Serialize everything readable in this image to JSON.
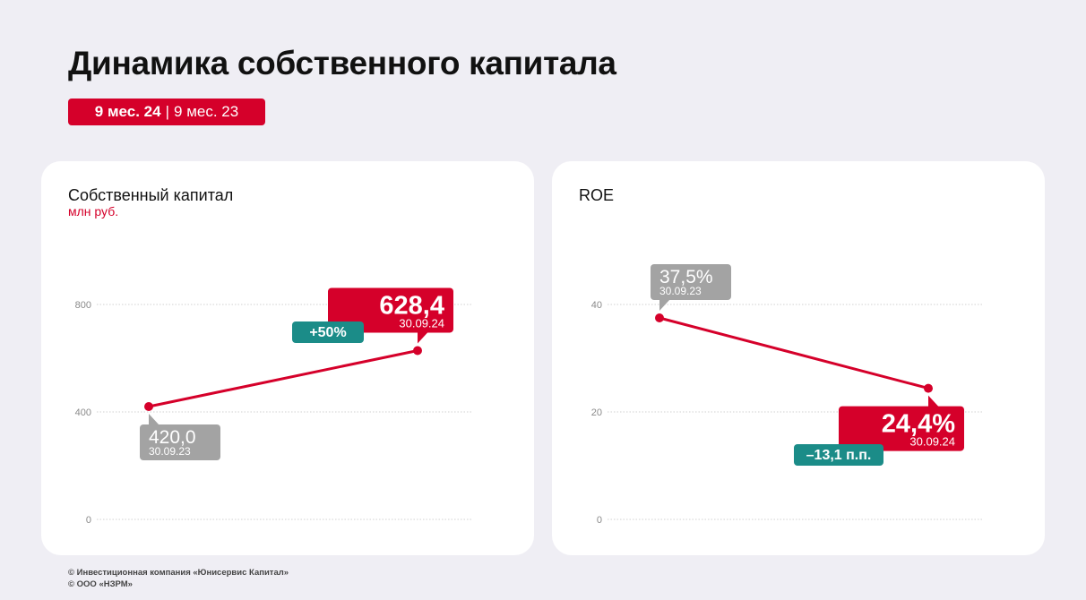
{
  "header": {
    "title": "Динамика собственного капитала",
    "period_active": "9 мес. 24",
    "period_separator": "|",
    "period_other": "9 мес. 23"
  },
  "colors": {
    "accent": "#d5002a",
    "gray_label": "#a3a3a3",
    "teal_badge": "#1b8c88",
    "grid": "#d0d0d0",
    "background": "#efeef4",
    "card": "#ffffff"
  },
  "chart_data": [
    {
      "type": "line",
      "title": "Собственный капитал",
      "subtitle": "млн руб.",
      "ylim": [
        0,
        800
      ],
      "yticks": [
        0,
        400,
        800
      ],
      "ytick_labels": [
        "0",
        "400",
        "800"
      ],
      "grid": true,
      "points": [
        {
          "value": 420.0,
          "value_label": "420,0",
          "date": "30.09.23"
        },
        {
          "value": 628.4,
          "value_label": "628,4",
          "date": "30.09.24"
        }
      ],
      "change_badge": "+50%"
    },
    {
      "type": "line",
      "title": "ROE",
      "subtitle": "",
      "ylim": [
        0,
        40
      ],
      "yticks": [
        0,
        20,
        40
      ],
      "ytick_labels": [
        "0",
        "20",
        "40"
      ],
      "grid": true,
      "points": [
        {
          "value": 37.5,
          "value_label": "37,5%",
          "date": "30.09.23"
        },
        {
          "value": 24.4,
          "value_label": "24,4%",
          "date": "30.09.24"
        }
      ],
      "change_badge": "–13,1 п.п."
    }
  ],
  "footer": {
    "line1": "© Инвестиционная компания «Юнисервис Капитал»",
    "line2": "© ООО «НЗРМ»"
  }
}
